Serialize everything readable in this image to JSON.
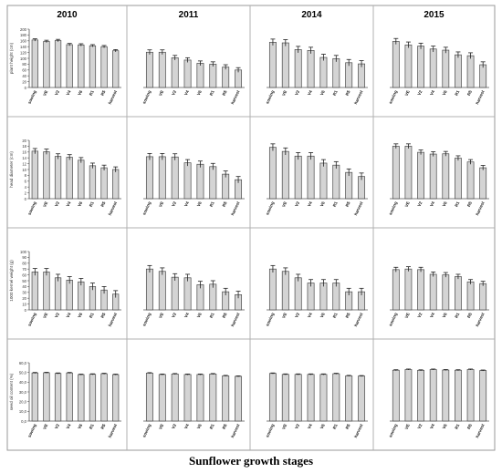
{
  "footer_title": "Sunflower growth stages",
  "years": [
    "2010",
    "2011",
    "2014",
    "2015"
  ],
  "categories": [
    "sowing",
    "VE",
    "V2",
    "V4",
    "V6",
    "R1",
    "R5",
    "harvest"
  ],
  "rows": [
    {
      "ylabel": "plant height (cm)",
      "ylim": [
        0,
        200
      ],
      "ticks": [
        "0",
        "20",
        "40",
        "60",
        "80",
        "100",
        "120",
        "140",
        "160",
        "180",
        "200"
      ]
    },
    {
      "ylabel": "head diameter (cm)",
      "ylim": [
        0,
        20
      ],
      "ticks": [
        "0",
        "2",
        "4",
        "6",
        "8",
        "10",
        "12",
        "14",
        "16",
        "18",
        "20"
      ]
    },
    {
      "ylabel": "1000 kernel weight (g)",
      "ylim": [
        0,
        100
      ],
      "ticks": [
        "0",
        "10",
        "20",
        "30",
        "40",
        "50",
        "60",
        "70",
        "80",
        "90",
        "100"
      ]
    },
    {
      "ylabel": "seed oil content (%)",
      "ylim": [
        0,
        60
      ],
      "ticks": [
        "0,0",
        "10,0",
        "20,0",
        "30,0",
        "40,0",
        "50,0",
        "60,0"
      ]
    }
  ],
  "chart_data": [
    {
      "type": "bar",
      "title": "2010",
      "ylabel": "plant height (cm)",
      "ylim": [
        0,
        200
      ],
      "categories": [
        "sowing",
        "VE",
        "V2",
        "V4",
        "V6",
        "R1",
        "R5",
        "harvest"
      ],
      "values": [
        163,
        158,
        161,
        147,
        146,
        143,
        140,
        126
      ],
      "errors": [
        4,
        4,
        4,
        4,
        4,
        4,
        4,
        4
      ]
    },
    {
      "type": "bar",
      "title": "2011",
      "ylabel": "",
      "ylim": [
        0,
        200
      ],
      "categories": [
        "sowing",
        "VE",
        "V2",
        "V4",
        "V6",
        "R1",
        "R5",
        "harvest"
      ],
      "values": [
        121,
        121,
        102,
        94,
        83,
        80,
        70,
        60
      ],
      "errors": [
        8,
        8,
        8,
        8,
        8,
        8,
        8,
        8
      ]
    },
    {
      "type": "bar",
      "title": "2014",
      "ylabel": "",
      "ylim": [
        0,
        200
      ],
      "categories": [
        "sowing",
        "VE",
        "V2",
        "V4",
        "V6",
        "R1",
        "R5",
        "harvest"
      ],
      "values": [
        155,
        153,
        130,
        127,
        103,
        99,
        85,
        81
      ],
      "errors": [
        11,
        11,
        11,
        11,
        11,
        11,
        11,
        11
      ]
    },
    {
      "type": "bar",
      "title": "2015",
      "ylabel": "",
      "ylim": [
        0,
        200
      ],
      "categories": [
        "sowing",
        "VE",
        "V2",
        "V4",
        "V6",
        "R1",
        "R5",
        "harvest"
      ],
      "values": [
        158,
        146,
        142,
        132,
        128,
        112,
        109,
        78
      ],
      "errors": [
        10,
        10,
        10,
        10,
        10,
        10,
        10,
        10
      ]
    },
    {
      "type": "bar",
      "title": "",
      "ylabel": "head diameter (cm)",
      "ylim": [
        0,
        20
      ],
      "categories": [
        "sowing",
        "VE",
        "V2",
        "V4",
        "V6",
        "R1",
        "R5",
        "harvest"
      ],
      "values": [
        16.3,
        16.1,
        14.5,
        14.2,
        13.2,
        11.3,
        10.6,
        10.0
      ],
      "errors": [
        0.9,
        0.9,
        0.9,
        0.9,
        0.9,
        0.9,
        0.9,
        0.9
      ]
    },
    {
      "type": "bar",
      "title": "",
      "ylabel": "",
      "ylim": [
        0,
        20
      ],
      "categories": [
        "sowing",
        "VE",
        "V2",
        "V4",
        "V6",
        "R1",
        "R5",
        "harvest"
      ],
      "values": [
        14.4,
        14.4,
        14.3,
        12.3,
        11.8,
        11.0,
        8.4,
        6.5
      ],
      "errors": [
        1.1,
        1.1,
        1.1,
        1.1,
        1.1,
        1.1,
        1.1,
        1.1
      ]
    },
    {
      "type": "bar",
      "title": "",
      "ylabel": "",
      "ylim": [
        0,
        20
      ],
      "categories": [
        "sowing",
        "VE",
        "V2",
        "V4",
        "V6",
        "R1",
        "R5",
        "harvest"
      ],
      "values": [
        17.6,
        16.2,
        14.6,
        14.6,
        12.2,
        11.5,
        9.0,
        7.6
      ],
      "errors": [
        1.2,
        1.2,
        1.2,
        1.2,
        1.2,
        1.2,
        1.2,
        1.2
      ]
    },
    {
      "type": "bar",
      "title": "",
      "ylabel": "",
      "ylim": [
        0,
        20
      ],
      "categories": [
        "sowing",
        "VE",
        "V2",
        "V4",
        "V6",
        "R1",
        "R5",
        "harvest"
      ],
      "values": [
        18.0,
        18.0,
        15.9,
        15.3,
        15.4,
        13.9,
        12.6,
        10.6
      ],
      "errors": [
        0.8,
        0.8,
        0.8,
        0.8,
        0.8,
        0.8,
        0.8,
        0.8
      ]
    },
    {
      "type": "bar",
      "title": "",
      "ylabel": "1000 kernel weight (g)",
      "ylim": [
        0,
        100
      ],
      "categories": [
        "sowing",
        "VE",
        "V2",
        "V4",
        "V6",
        "R1",
        "R5",
        "harvest"
      ],
      "values": [
        65,
        65,
        55,
        51,
        48,
        40,
        34,
        27
      ],
      "errors": [
        6,
        6,
        6,
        6,
        6,
        6,
        6,
        6
      ]
    },
    {
      "type": "bar",
      "title": "",
      "ylabel": "",
      "ylim": [
        0,
        100
      ],
      "categories": [
        "sowing",
        "VE",
        "V2",
        "V4",
        "V6",
        "R1",
        "R5",
        "harvest"
      ],
      "values": [
        70,
        66,
        56,
        55,
        43,
        44,
        31,
        26
      ],
      "errors": [
        6,
        6,
        6,
        6,
        6,
        6,
        6,
        6
      ]
    },
    {
      "type": "bar",
      "title": "",
      "ylabel": "",
      "ylim": [
        0,
        100
      ],
      "categories": [
        "sowing",
        "VE",
        "V2",
        "V4",
        "V6",
        "R1",
        "R5",
        "harvest"
      ],
      "values": [
        70,
        66,
        55,
        46,
        46,
        46,
        31,
        31
      ],
      "errors": [
        6,
        6,
        6,
        6,
        6,
        6,
        6,
        6
      ]
    },
    {
      "type": "bar",
      "title": "",
      "ylabel": "",
      "ylim": [
        0,
        100
      ],
      "categories": [
        "sowing",
        "VE",
        "V2",
        "V4",
        "V6",
        "R1",
        "R5",
        "harvest"
      ],
      "values": [
        69,
        70,
        69,
        61,
        60,
        57,
        48,
        45
      ],
      "errors": [
        4,
        4,
        4,
        4,
        4,
        4,
        4,
        4
      ]
    },
    {
      "type": "bar",
      "title": "",
      "ylabel": "seed oil content (%)",
      "ylim": [
        0,
        60
      ],
      "categories": [
        "sowing",
        "VE",
        "V2",
        "V4",
        "V6",
        "R1",
        "R5",
        "harvest"
      ],
      "values": [
        49.5,
        49.7,
        49.0,
        49.5,
        47.8,
        48.1,
        48.7,
        47.8
      ],
      "errors": [
        0.5,
        0.5,
        0.5,
        0.5,
        0.5,
        0.5,
        0.5,
        0.5
      ]
    },
    {
      "type": "bar",
      "title": "",
      "ylabel": "",
      "ylim": [
        0,
        60
      ],
      "categories": [
        "sowing",
        "VE",
        "V2",
        "V4",
        "V6",
        "R1",
        "R5",
        "harvest"
      ],
      "values": [
        49.3,
        47.9,
        48.4,
        47.9,
        47.9,
        48.4,
        46.5,
        46.0
      ],
      "errors": [
        0.5,
        0.5,
        0.5,
        0.5,
        0.5,
        0.5,
        0.5,
        0.5
      ]
    },
    {
      "type": "bar",
      "title": "",
      "ylabel": "",
      "ylim": [
        0,
        60
      ],
      "categories": [
        "sowing",
        "VE",
        "V2",
        "V4",
        "V6",
        "R1",
        "R5",
        "harvest"
      ],
      "values": [
        49.0,
        48.0,
        48.0,
        48.0,
        48.0,
        48.7,
        46.5,
        46.3
      ],
      "errors": [
        0.5,
        0.5,
        0.5,
        0.5,
        0.5,
        0.5,
        0.5,
        0.5
      ]
    },
    {
      "type": "bar",
      "title": "",
      "ylabel": "",
      "ylim": [
        0,
        60
      ],
      "categories": [
        "sowing",
        "VE",
        "V2",
        "V4",
        "V6",
        "R1",
        "R5",
        "harvest"
      ],
      "values": [
        52.3,
        53.0,
        52.2,
        53.0,
        52.5,
        52.3,
        53.0,
        52.0
      ],
      "errors": [
        0.5,
        0.5,
        0.5,
        0.5,
        0.5,
        0.5,
        0.5,
        0.5
      ]
    }
  ]
}
